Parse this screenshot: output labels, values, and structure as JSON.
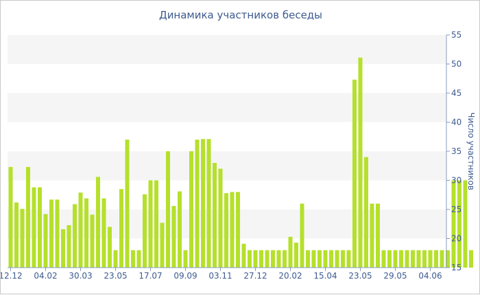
{
  "chart_data": {
    "type": "bar",
    "title": "Динамика участников беседы",
    "ylabel": "Число участников",
    "xlabel": "",
    "ylim": [
      15,
      55
    ],
    "yticks": [
      15,
      20,
      25,
      30,
      35,
      40,
      45,
      50,
      55
    ],
    "grid": true,
    "yaxis_side": "right",
    "bar_color": "#b5e02b",
    "band_color": "#f5f5f5",
    "text_color": "#3d5a8f",
    "xtick_labels": [
      {
        "label": "12.12",
        "index": 0
      },
      {
        "label": "04.02",
        "index": 6
      },
      {
        "label": "30.03",
        "index": 12
      },
      {
        "label": "23.05",
        "index": 18
      },
      {
        "label": "17.07",
        "index": 24
      },
      {
        "label": "09.09",
        "index": 30
      },
      {
        "label": "03.11",
        "index": 36
      },
      {
        "label": "27.12",
        "index": 42
      },
      {
        "label": "20.02",
        "index": 48
      },
      {
        "label": "15.04",
        "index": 54
      },
      {
        "label": "23.05",
        "index": 60
      },
      {
        "label": "29.05",
        "index": 66
      },
      {
        "label": "04.06",
        "index": 72
      }
    ],
    "values": [
      32.3,
      26.2,
      25.1,
      32.3,
      28.8,
      28.8,
      24.2,
      26.7,
      26.7,
      21.6,
      22.3,
      25.9,
      27.9,
      26.9,
      24.1,
      30.6,
      26.9,
      22.0,
      18.0,
      28.5,
      37.0,
      18.0,
      18.0,
      27.6,
      30.0,
      30.0,
      22.7,
      35.0,
      25.6,
      28.1,
      18.0,
      35.0,
      37.0,
      37.1,
      37.1,
      33.0,
      32.0,
      27.8,
      28.0,
      28.0,
      19.1,
      18.0,
      18.0,
      18.0,
      18.0,
      18.0,
      18.0,
      18.0,
      20.3,
      19.3,
      26.0,
      18.0,
      18.0,
      18.0,
      18.0,
      18.0,
      18.0,
      18.0,
      18.0,
      47.3,
      51.1,
      34.0,
      26.0,
      26.0,
      18.0,
      18.0,
      18.0,
      18.0,
      18.0,
      18.0,
      18.0,
      18.0,
      18.0,
      18.0,
      18.0,
      18.0,
      30.0,
      30.0,
      30.0,
      18.0
    ]
  }
}
